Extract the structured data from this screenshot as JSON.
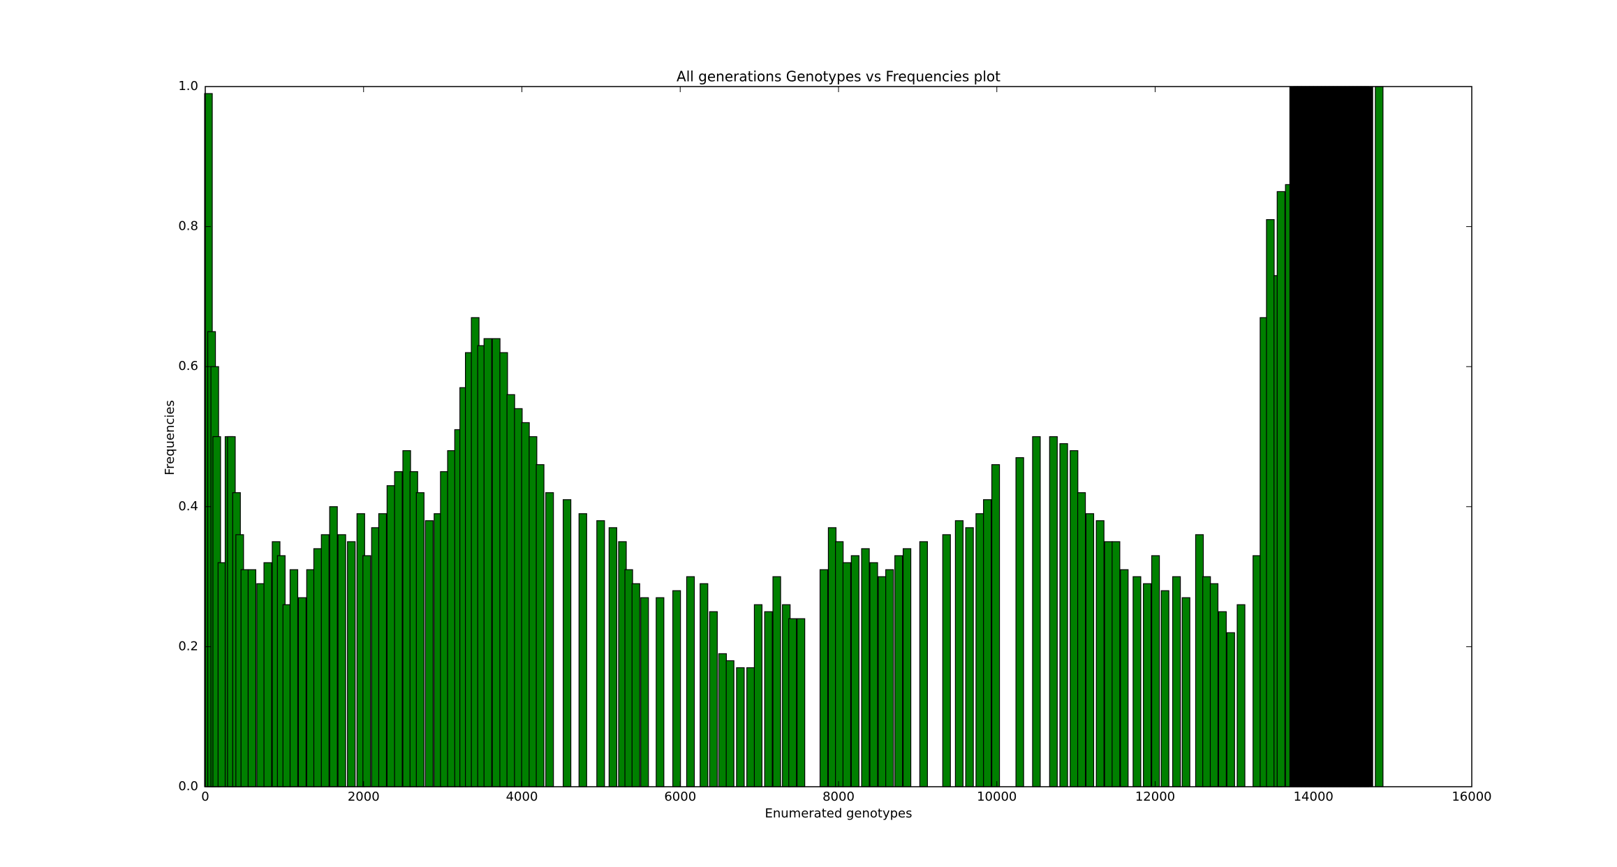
{
  "chart_data": {
    "type": "bar",
    "title": "All generations Genotypes vs Frequencies plot",
    "xlabel": "Enumerated genotypes",
    "ylabel": "Frequencies",
    "series": [
      {
        "color": "#008000",
        "x": [
          40,
          80,
          120,
          145,
          210,
          300,
          330,
          395,
          435,
          500,
          590,
          700,
          790,
          895,
          960,
          1030,
          1120,
          1225,
          1330,
          1420,
          1515,
          1620,
          1725,
          1845,
          1965,
          2040,
          2150,
          2240,
          2345,
          2440,
          2545,
          2635,
          2715,
          2830,
          2940,
          3020,
          3110,
          3200,
          3265,
          3335,
          3410,
          3490,
          3570,
          3675,
          3770,
          3860,
          3955,
          4045,
          4140,
          4230,
          4350,
          4570,
          4770,
          4995,
          5150,
          5270,
          5350,
          5440,
          5550,
          5745,
          5955,
          6130,
          6300,
          6420,
          6535,
          6630,
          6760,
          6890,
          6985,
          7115,
          7220,
          7340,
          7420,
          7525,
          7815,
          7920,
          8010,
          8105,
          8210,
          8340,
          8445,
          8550,
          8645,
          8760,
          8865,
          9075,
          9365,
          9525,
          9655,
          9785,
          9880,
          9985,
          10290,
          10500,
          10715,
          10845,
          10975,
          11070,
          11175,
          11305,
          11410,
          11505,
          11610,
          11770,
          11900,
          12005,
          12125,
          12270,
          12390,
          12560,
          12650,
          12745,
          12850,
          12955,
          13085,
          13285,
          13375,
          13455,
          13550,
          13590,
          13695,
          14830
        ],
        "values": [
          0.99,
          0.65,
          0.6,
          0.5,
          0.32,
          0.5,
          0.5,
          0.42,
          0.36,
          0.31,
          0.31,
          0.29,
          0.32,
          0.35,
          0.33,
          0.26,
          0.31,
          0.27,
          0.31,
          0.34,
          0.36,
          0.4,
          0.36,
          0.35,
          0.39,
          0.33,
          0.37,
          0.39,
          0.43,
          0.45,
          0.48,
          0.45,
          0.42,
          0.38,
          0.39,
          0.45,
          0.48,
          0.51,
          0.57,
          0.62,
          0.67,
          0.63,
          0.64,
          0.64,
          0.62,
          0.56,
          0.54,
          0.52,
          0.5,
          0.46,
          0.42,
          0.41,
          0.39,
          0.38,
          0.37,
          0.35,
          0.31,
          0.29,
          0.27,
          0.27,
          0.28,
          0.3,
          0.29,
          0.25,
          0.19,
          0.18,
          0.17,
          0.17,
          0.26,
          0.25,
          0.3,
          0.26,
          0.24,
          0.24,
          0.31,
          0.37,
          0.35,
          0.32,
          0.33,
          0.34,
          0.32,
          0.3,
          0.31,
          0.33,
          0.34,
          0.35,
          0.36,
          0.38,
          0.37,
          0.39,
          0.41,
          0.46,
          0.47,
          0.5,
          0.5,
          0.49,
          0.48,
          0.42,
          0.39,
          0.38,
          0.35,
          0.35,
          0.31,
          0.3,
          0.29,
          0.33,
          0.28,
          0.3,
          0.27,
          0.36,
          0.3,
          0.29,
          0.25,
          0.22,
          0.26,
          0.33,
          0.67,
          0.81,
          0.73,
          0.85,
          0.86,
          1.0
        ]
      },
      {
        "color": "#000000",
        "x": [
          13750,
          13800,
          13850,
          13900,
          13950,
          14000,
          14050,
          14100,
          14150,
          14200,
          14250,
          14300,
          14350,
          14400,
          14450,
          14500,
          14550,
          14600,
          14650,
          14700
        ],
        "values": [
          1.0,
          1.0,
          1.0,
          1.0,
          1.0,
          1.0,
          1.0,
          1.0,
          1.0,
          1.0,
          1.0,
          1.0,
          1.0,
          1.0,
          1.0,
          1.0,
          1.0,
          1.0,
          1.0,
          1.0
        ]
      }
    ],
    "xlim": [
      0,
      16000
    ],
    "xticks": [
      0,
      2000,
      4000,
      6000,
      8000,
      10000,
      12000,
      14000,
      16000
    ],
    "ylim": [
      0,
      1.0
    ],
    "yticks": [
      {
        "value": 0,
        "label": "0.0"
      },
      0.2,
      0.4,
      0.6,
      0.8,
      {
        "value": 1,
        "label": "1.0"
      }
    ],
    "grid": false
  }
}
